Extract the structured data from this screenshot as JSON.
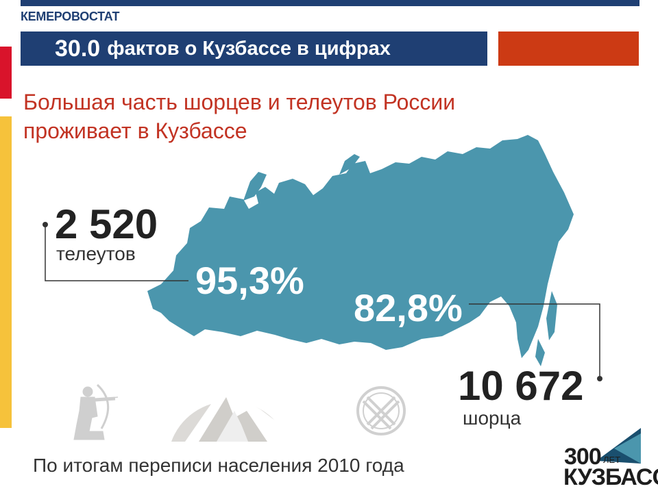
{
  "header": {
    "brand": "КЕМЕРОВОСТАТ",
    "title_number": "30.0",
    "title_text": "фактов о Кузбассе в цифрах"
  },
  "headline": {
    "line1": "Большая часть шорцев и телеутов России",
    "line2": "проживает в Кузбассе"
  },
  "stats": {
    "teleut": {
      "count": "2 520",
      "label": "телеутов",
      "percent": "95,3%"
    },
    "shor": {
      "count": "10 672",
      "label": "шорца",
      "percent": "82,8%"
    }
  },
  "footer": {
    "note": "По итогам переписи населения 2010 года"
  },
  "logo": {
    "number": "300",
    "suffix": "ЛЕТ",
    "name": "КУЗБАСС"
  },
  "colors": {
    "navy": "#1f3f73",
    "map": "#4b96ad",
    "headline": "#c23323",
    "accent_orange": "#cc3a14",
    "stripe_red": "#d9132b",
    "stripe_yellow": "#f6c23b"
  },
  "icons": [
    "archer-icon",
    "mountain-icon",
    "shaman-drum-icon",
    "russia-map-icon",
    "kuzbass-logo-icon"
  ]
}
